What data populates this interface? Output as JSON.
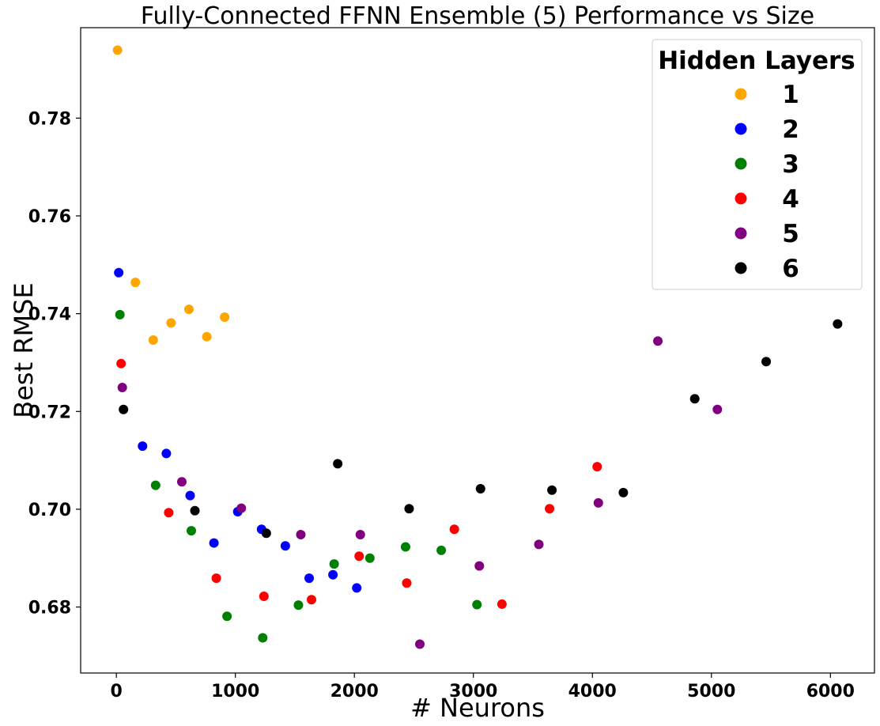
{
  "chart_data": {
    "type": "scatter",
    "title": "Fully-Connected FFNN Ensemble (5) Performance vs Size",
    "xlabel": "# Neurons",
    "ylabel": "Best RMSE",
    "xlim": [
      -300,
      6370
    ],
    "ylim": [
      0.6665,
      0.7985
    ],
    "xticks": [
      0,
      1000,
      2000,
      3000,
      4000,
      5000,
      6000
    ],
    "yticks": [
      0.68,
      0.7,
      0.72,
      0.74,
      0.76,
      0.78
    ],
    "xtick_labels": [
      "0",
      "1000",
      "2000",
      "3000",
      "4000",
      "5000",
      "6000"
    ],
    "ytick_labels": [
      "0.68",
      "0.70",
      "0.72",
      "0.74",
      "0.76",
      "0.78"
    ],
    "grid": false,
    "legend": {
      "title": "Hidden Layers",
      "position": "top-right"
    },
    "series": [
      {
        "name": "1",
        "color": "#FFA500",
        "points": [
          [
            10,
            0.7939
          ],
          [
            160,
            0.7464
          ],
          [
            310,
            0.7346
          ],
          [
            460,
            0.7381
          ],
          [
            610,
            0.7409
          ],
          [
            760,
            0.7353
          ],
          [
            910,
            0.7393
          ]
        ]
      },
      {
        "name": "2",
        "color": "#0000FF",
        "points": [
          [
            20,
            0.7484
          ],
          [
            220,
            0.7129
          ],
          [
            420,
            0.7114
          ],
          [
            620,
            0.7028
          ],
          [
            820,
            0.6931
          ],
          [
            1020,
            0.6995
          ],
          [
            1220,
            0.6959
          ],
          [
            1420,
            0.6925
          ],
          [
            1620,
            0.6859
          ],
          [
            1820,
            0.6866
          ],
          [
            2020,
            0.6839
          ]
        ]
      },
      {
        "name": "3",
        "color": "#008000",
        "points": [
          [
            30,
            0.7398
          ],
          [
            330,
            0.7049
          ],
          [
            630,
            0.6956
          ],
          [
            930,
            0.6781
          ],
          [
            1230,
            0.6737
          ],
          [
            1530,
            0.6804
          ],
          [
            1830,
            0.6888
          ],
          [
            2130,
            0.69
          ],
          [
            2430,
            0.6923
          ],
          [
            2730,
            0.6916
          ],
          [
            3030,
            0.6805
          ]
        ]
      },
      {
        "name": "4",
        "color": "#FF0000",
        "points": [
          [
            40,
            0.7298
          ],
          [
            440,
            0.6993
          ],
          [
            840,
            0.6859
          ],
          [
            1240,
            0.6822
          ],
          [
            1640,
            0.6815
          ],
          [
            2040,
            0.6904
          ],
          [
            2440,
            0.6849
          ],
          [
            2840,
            0.6959
          ],
          [
            3240,
            0.6806
          ],
          [
            3640,
            0.7001
          ],
          [
            4040,
            0.7087
          ]
        ]
      },
      {
        "name": "5",
        "color": "#800080",
        "points": [
          [
            50,
            0.7249
          ],
          [
            550,
            0.7056
          ],
          [
            1050,
            0.7002
          ],
          [
            1550,
            0.6948
          ],
          [
            2050,
            0.6948
          ],
          [
            2550,
            0.6724
          ],
          [
            3050,
            0.6884
          ],
          [
            3550,
            0.6928
          ],
          [
            4050,
            0.7013
          ],
          [
            4550,
            0.7344
          ],
          [
            5050,
            0.7204
          ]
        ]
      },
      {
        "name": "6",
        "color": "#000000",
        "points": [
          [
            60,
            0.7204
          ],
          [
            660,
            0.6997
          ],
          [
            1260,
            0.6951
          ],
          [
            1860,
            0.7093
          ],
          [
            2460,
            0.7001
          ],
          [
            3060,
            0.7042
          ],
          [
            3660,
            0.7039
          ],
          [
            4260,
            0.7034
          ],
          [
            4860,
            0.7226
          ],
          [
            5460,
            0.7302
          ],
          [
            6060,
            0.7379
          ]
        ]
      }
    ]
  }
}
